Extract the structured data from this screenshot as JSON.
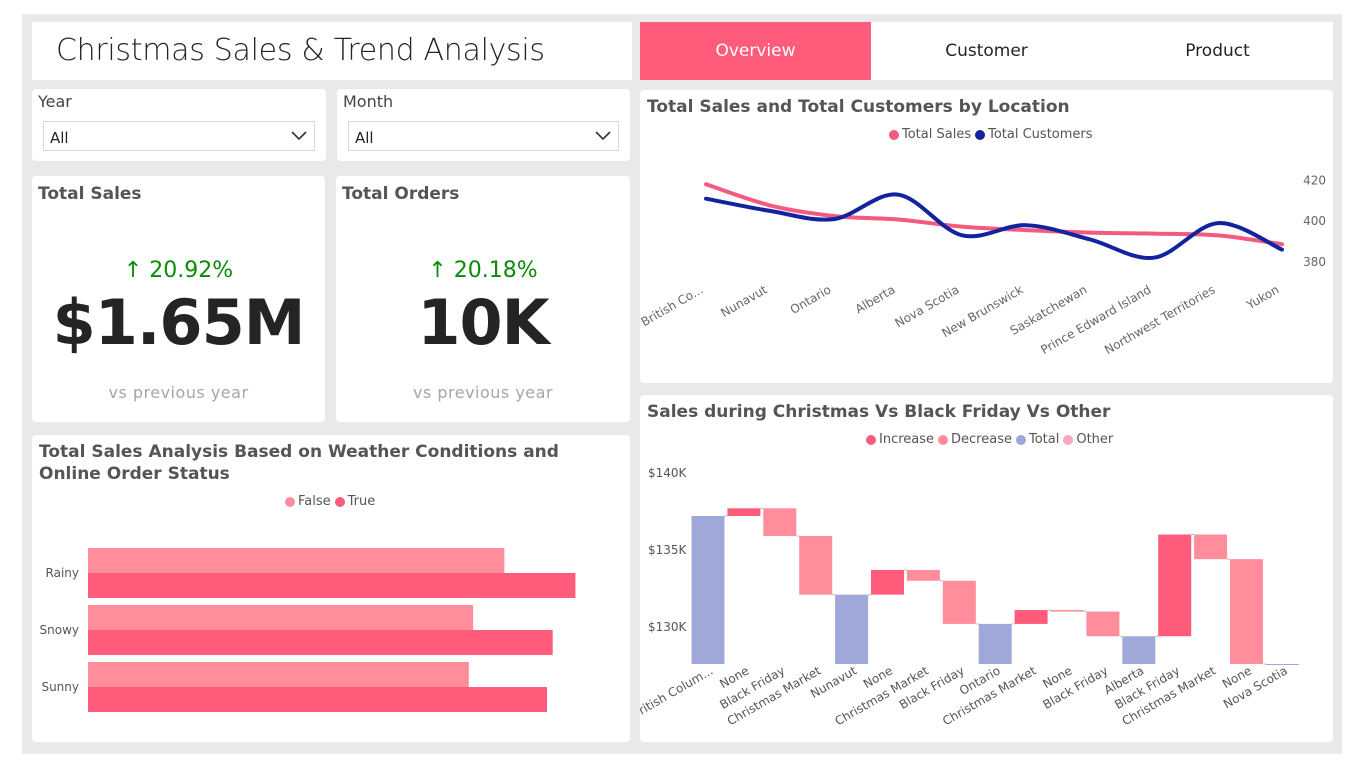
{
  "header": {
    "title": "Christmas Sales & Trend Analysis",
    "tabs": [
      "Overview",
      "Customer",
      "Product"
    ],
    "active_tab": 0
  },
  "slicers": {
    "year": {
      "label": "Year",
      "value": "All"
    },
    "month": {
      "label": "Month",
      "value": "All"
    }
  },
  "cards": {
    "total_sales": {
      "title": "Total Sales",
      "delta": "20.92%",
      "value": "$1.65M",
      "sub": "vs previous year"
    },
    "total_orders": {
      "title": "Total Orders",
      "delta": "20.18%",
      "value": "10K",
      "sub": "vs previous year"
    }
  },
  "colors": {
    "accent": "#ff5b7a",
    "sales_line": "#f25a80",
    "customers_line": "#12239e",
    "increase": "#ff5b7a",
    "decrease": "#ff8d9c",
    "total": "#a0a8da",
    "false_bar": "#ff8d9c",
    "true_bar": "#ff5b7a",
    "delta_up": "#0b8a0b"
  },
  "chart_data": [
    {
      "id": "location",
      "type": "line",
      "title": "Total Sales and Total Customers by Location",
      "categories": [
        "British Co...",
        "Nunavut",
        "Ontario",
        "Alberta",
        "Nova Scotia",
        "New Brunswick",
        "Saskatchewan",
        "Prince Edward Island",
        "Northwest Territories",
        "Yukon"
      ],
      "series": [
        {
          "name": "Total Sales",
          "values": [
            170,
            164,
            161,
            160,
            158,
            157,
            156.3,
            156,
            155.5,
            153
          ]
        },
        {
          "name": "Total Customers",
          "values": [
            411,
            405,
            401,
            413,
            393,
            398,
            391,
            382,
            399,
            386
          ]
        }
      ],
      "y2_ticks": [
        420,
        400,
        380
      ],
      "y2lim": [
        373,
        432
      ],
      "ylim": [
        144,
        178
      ],
      "legend": "top-center"
    },
    {
      "id": "weather",
      "type": "bar",
      "orientation": "horizontal",
      "title": "Total Sales Analysis Based on Weather Conditions and Online Order Status",
      "categories": [
        "Rainy",
        "Snowy",
        "Sunny"
      ],
      "series": [
        {
          "name": "False",
          "values": [
            293,
            271,
            268
          ]
        },
        {
          "name": "True",
          "values": [
            343,
            327,
            323
          ]
        }
      ],
      "xlim": [
        0,
        380
      ],
      "legend": "top-center"
    },
    {
      "id": "waterfall",
      "type": "bar",
      "subtype": "waterfall",
      "title": "Sales during Christmas Vs Black Friday Vs Other",
      "legend_labels": [
        "Increase",
        "Decrease",
        "Total",
        "Other"
      ],
      "y_ticks": [
        "$140K",
        "$135K",
        "$130K"
      ],
      "y_tick_values": [
        140000,
        135000,
        130000
      ],
      "ylim": [
        127500,
        142500
      ],
      "categories": [
        "British Colum...",
        "None",
        "Black Friday",
        "Christmas Market",
        "Nunavut",
        "None",
        "Christmas Market",
        "Black Friday",
        "Ontario",
        "Christmas Market",
        "None",
        "Black Friday",
        "Alberta",
        "Black Friday",
        "Christmas Market",
        "None",
        "Nova Scotia"
      ],
      "steps": [
        {
          "kind": "total",
          "start": 128000,
          "end": 137600
        },
        {
          "kind": "increase",
          "start": 137600,
          "end": 138100
        },
        {
          "kind": "decrease",
          "start": 138100,
          "end": 136300
        },
        {
          "kind": "decrease",
          "start": 136300,
          "end": 132500
        },
        {
          "kind": "total",
          "start": 128000,
          "end": 132500
        },
        {
          "kind": "increase",
          "start": 132500,
          "end": 134100
        },
        {
          "kind": "decrease",
          "start": 134100,
          "end": 133400
        },
        {
          "kind": "decrease",
          "start": 133400,
          "end": 130600
        },
        {
          "kind": "total",
          "start": 128000,
          "end": 130600
        },
        {
          "kind": "increase",
          "start": 130600,
          "end": 131500
        },
        {
          "kind": "decrease",
          "start": 131500,
          "end": 131400
        },
        {
          "kind": "decrease",
          "start": 131400,
          "end": 129800
        },
        {
          "kind": "total",
          "start": 128000,
          "end": 129800
        },
        {
          "kind": "increase",
          "start": 129800,
          "end": 136400
        },
        {
          "kind": "decrease",
          "start": 136400,
          "end": 134800
        },
        {
          "kind": "decrease",
          "start": 134800,
          "end": 128000
        },
        {
          "kind": "total",
          "start": 128000,
          "end": 128000
        }
      ]
    }
  ]
}
